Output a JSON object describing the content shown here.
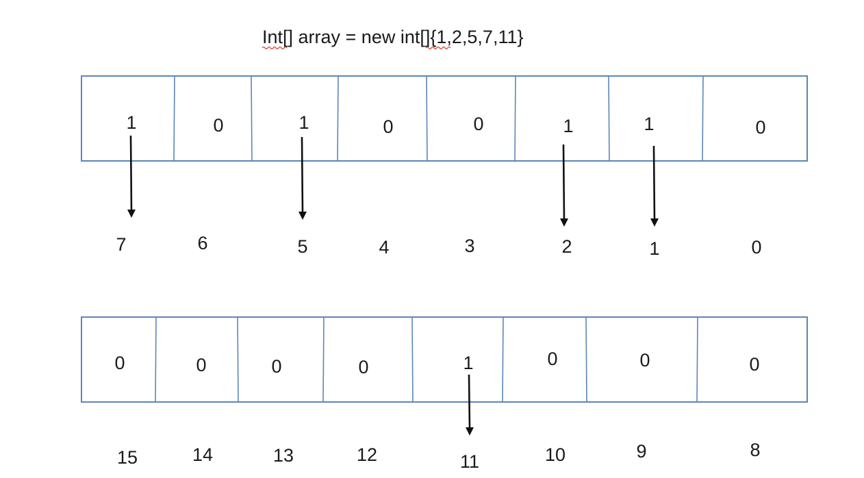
{
  "title": "Int[] array = new int[]{1,2,5,7,11}",
  "rows": [
    {
      "bits": [
        "1",
        "0",
        "1",
        "0",
        "0",
        "1",
        "1",
        "0"
      ],
      "indices": [
        "7",
        "6",
        "5",
        "4",
        "3",
        "2",
        "1",
        "0"
      ],
      "arrow_cells": [
        0,
        2,
        5,
        6
      ]
    },
    {
      "bits": [
        "0",
        "0",
        "0",
        "0",
        "1",
        "0",
        "0",
        "0"
      ],
      "indices": [
        "15",
        "14",
        "13",
        "12",
        "11",
        "10",
        "9",
        "8"
      ],
      "arrow_cells": [
        4
      ]
    }
  ],
  "colors": {
    "cell_border": "#5b86b8",
    "arrow": "#111111",
    "spellcheck_underline": "#d83a2e"
  }
}
